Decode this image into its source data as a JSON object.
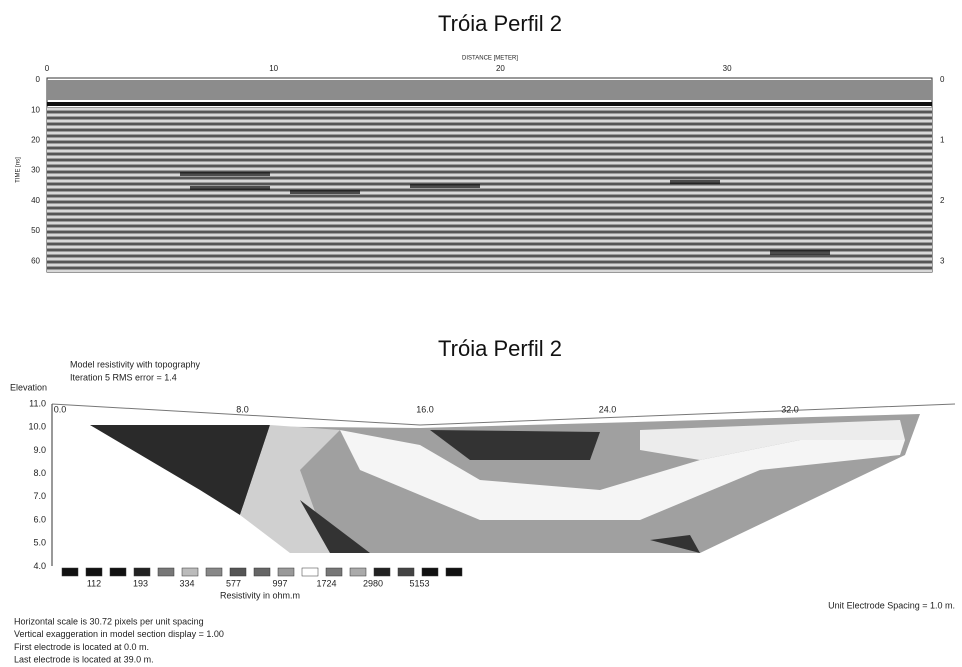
{
  "gpr": {
    "title": "Tróia Perfil 2",
    "x_label": "DISTANCE [METER]",
    "y_label": "TIME [ns]",
    "x_ticks": [
      "0",
      "10",
      "20",
      "30"
    ],
    "y_ticks": [
      "0",
      "10",
      "20",
      "30",
      "40",
      "50",
      "60"
    ],
    "y2_ticks": [
      "0",
      "1",
      "2",
      "3"
    ]
  },
  "ert": {
    "title": "Tróia Perfil 2",
    "notes": [
      "Model resistivity with topography",
      "Iteration 5 RMS error = 1.4"
    ],
    "y_label": "Elevation",
    "y_ticks": [
      "11.0",
      "10.0",
      "9.0",
      "8.0",
      "7.0",
      "6.0",
      "5.0",
      "4.0"
    ],
    "x_ticks": [
      "0.0",
      "8.0",
      "16.0",
      "24.0",
      "32.0"
    ],
    "legend_values": [
      "112",
      "193",
      "334",
      "577",
      "997",
      "1724",
      "2980",
      "5153"
    ],
    "legend_label": "Resistivity in ohm.m",
    "spacing": "Unit Electrode Spacing = 1.0 m.",
    "footer": [
      "Horizontal scale is 30.72 pixels per unit spacing",
      "Vertical exaggeration in model section display = 1.00",
      "First electrode is located at 0.0  m.",
      "Last electrode is located at 39.0 m."
    ]
  }
}
